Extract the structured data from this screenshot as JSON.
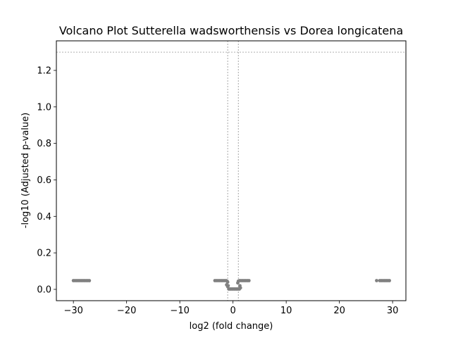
{
  "chart_data": {
    "type": "scatter",
    "title": "Volcano Plot Sutterella wadsworthensis vs Dorea longicatena",
    "xlabel": "log2 (fold change)",
    "ylabel": "-log10 (Adjusted p-value)",
    "xlim": [
      -33.2,
      32.5
    ],
    "ylim": [
      -0.062,
      1.362
    ],
    "xticks": [
      -30,
      -20,
      -10,
      0,
      10,
      20,
      30
    ],
    "xtick_labels": [
      "−30",
      "−20",
      "−10",
      "0",
      "10",
      "20",
      "30"
    ],
    "yticks": [
      0.0,
      0.2,
      0.4,
      0.6,
      0.8,
      1.0,
      1.2
    ],
    "ytick_labels": [
      "0.0",
      "0.2",
      "0.4",
      "0.6",
      "0.8",
      "1.0",
      "1.2"
    ],
    "grid": false,
    "reference_lines": {
      "horizontal_y": [
        1.3
      ],
      "vertical_x": [
        -1,
        1
      ]
    },
    "series": [
      {
        "color": "#808080",
        "points": [
          [
            -30.0,
            0.048
          ],
          [
            -29.7,
            0.048
          ],
          [
            -29.4,
            0.048
          ],
          [
            -29.1,
            0.048
          ],
          [
            -28.8,
            0.048
          ],
          [
            -28.5,
            0.048
          ],
          [
            -28.2,
            0.048
          ],
          [
            -27.9,
            0.048
          ],
          [
            -27.6,
            0.048
          ],
          [
            -27.3,
            0.048
          ],
          [
            -27.0,
            0.048
          ],
          [
            -3.4,
            0.048
          ],
          [
            -3.1,
            0.048
          ],
          [
            -2.8,
            0.048
          ],
          [
            -2.5,
            0.048
          ],
          [
            -2.2,
            0.048
          ],
          [
            -1.9,
            0.048
          ],
          [
            -1.6,
            0.048
          ],
          [
            -1.3,
            0.048
          ],
          [
            -1.1,
            0.045
          ],
          [
            -1.0,
            0.04
          ],
          [
            -1.2,
            0.025
          ],
          [
            -1.0,
            0.015
          ],
          [
            -0.9,
            0.02
          ],
          [
            -0.8,
            0.002
          ],
          [
            -0.6,
            0.002
          ],
          [
            -0.4,
            0.002
          ],
          [
            -0.2,
            0.002
          ],
          [
            0.0,
            0.002
          ],
          [
            0.2,
            0.002
          ],
          [
            0.4,
            0.002
          ],
          [
            0.6,
            0.002
          ],
          [
            0.8,
            0.002
          ],
          [
            1.0,
            0.002
          ],
          [
            1.2,
            0.002
          ],
          [
            1.4,
            0.008
          ],
          [
            1.3,
            0.02
          ],
          [
            0.9,
            0.035
          ],
          [
            1.0,
            0.045
          ],
          [
            1.2,
            0.048
          ],
          [
            1.5,
            0.048
          ],
          [
            1.8,
            0.048
          ],
          [
            2.1,
            0.048
          ],
          [
            2.4,
            0.048
          ],
          [
            2.7,
            0.048
          ],
          [
            3.0,
            0.048
          ],
          [
            27.0,
            0.048
          ],
          [
            27.6,
            0.048
          ],
          [
            27.9,
            0.048
          ],
          [
            28.2,
            0.048
          ],
          [
            28.5,
            0.048
          ],
          [
            28.8,
            0.048
          ],
          [
            29.1,
            0.048
          ],
          [
            29.4,
            0.048
          ]
        ]
      }
    ]
  }
}
